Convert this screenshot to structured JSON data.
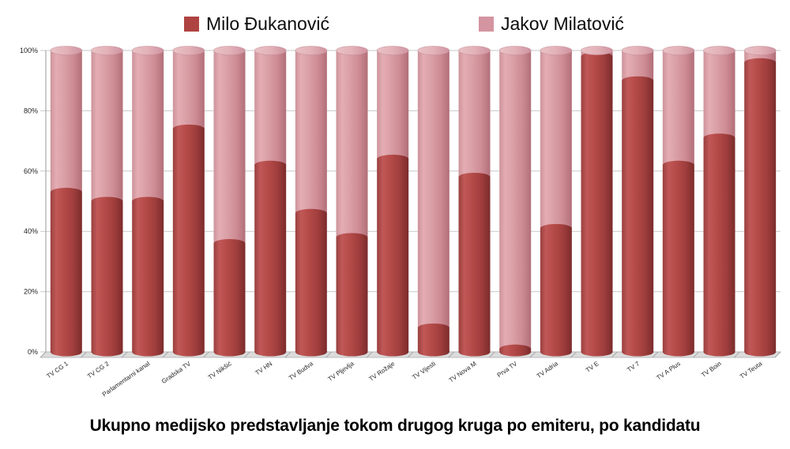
{
  "chart_data": {
    "type": "bar",
    "stacked": true,
    "shape": "cylinder-3d",
    "title": "Ukupno medijsko predstavljanje tokom drugog kruga po emiteru, po kandidatu",
    "categories": [
      "TV CG 1",
      "TV CG 2",
      "Parlamentarni kanal",
      "Gradska TV",
      "TV Nikšić",
      "TV HN",
      "TV Budva",
      "TV Pljevlja",
      "TV Rožaje",
      "TV Vijesti",
      "TV Nova M",
      "Prva TV",
      "TV Adria",
      "TV E",
      "TV 7",
      "TV A Plus",
      "TV Boin",
      "TV Teuta"
    ],
    "series": [
      {
        "name": "Milo Đukanović",
        "color": "#AF4341",
        "values": [
          53,
          50,
          50,
          74,
          36,
          62,
          46,
          38,
          64,
          8,
          58,
          1,
          41,
          98,
          90,
          62,
          71,
          96
        ]
      },
      {
        "name": "Jakov Milatović",
        "color": "#D494A0",
        "values": [
          47,
          50,
          50,
          26,
          64,
          38,
          54,
          62,
          36,
          92,
          42,
          99,
          59,
          2,
          10,
          38,
          29,
          4
        ]
      }
    ],
    "value_unit": "%",
    "ylim": [
      0,
      100
    ],
    "yticks": [
      "0%",
      "20%",
      "40%",
      "60%",
      "80%",
      "100%"
    ],
    "grid": true,
    "legend_position": "top"
  }
}
